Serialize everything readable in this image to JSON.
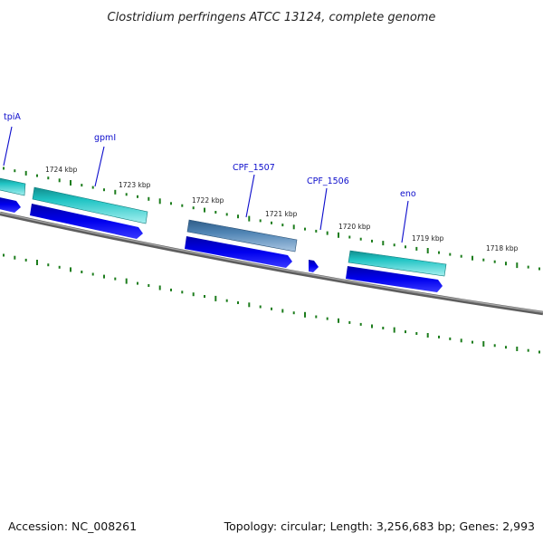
{
  "title": "Clostridium perfringens ATCC 13124, complete genome",
  "footer": {
    "accession": "Accession: NC_008261",
    "summary": "Topology: circular; Length: 3,256,683 bp; Genes: 2,993"
  },
  "colors": {
    "cds": "#0000ee",
    "gene_cyan": "#1ec8c8",
    "gene_steel": "#4a7fb0",
    "backbone": "#7a7a7a",
    "gc_ticks": "#1d7d1d",
    "label": "#0d0dcc"
  },
  "scale_labels": [
    "1724 kbp",
    "1723 kbp",
    "1722 kbp",
    "1721 kbp",
    "1720 kbp",
    "1719 kbp",
    "1718 kbp"
  ],
  "gene_labels": [
    "tpiA",
    "gpmI",
    "CPF_1507",
    "CPF_1506",
    "eno"
  ]
}
